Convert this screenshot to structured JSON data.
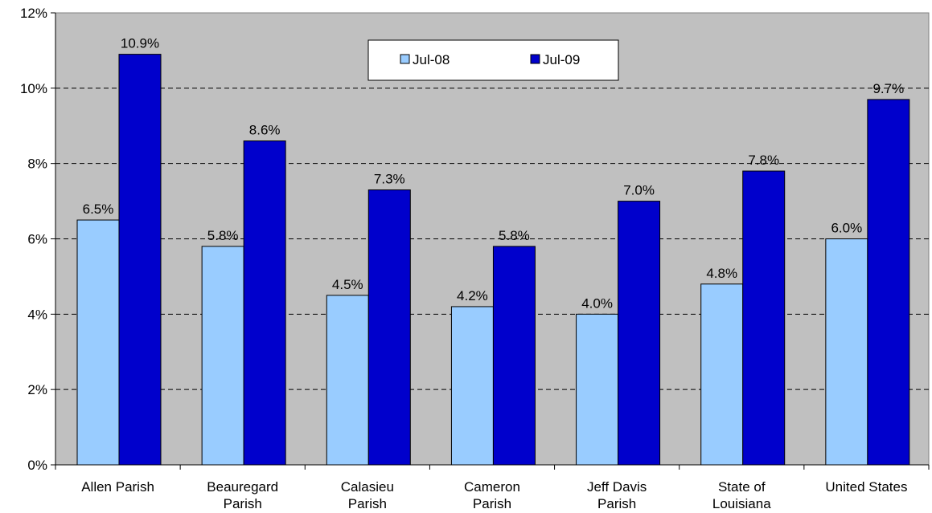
{
  "chart_data": {
    "type": "bar",
    "categories": [
      [
        "Allen Parish"
      ],
      [
        "Beauregard",
        "Parish"
      ],
      [
        "Calasieu",
        "Parish"
      ],
      [
        "Cameron",
        "Parish"
      ],
      [
        "Jeff Davis",
        "Parish"
      ],
      [
        "State of",
        "Louisiana"
      ],
      [
        "United States"
      ]
    ],
    "series": [
      {
        "name": "Jul-08",
        "color": "#99ccff",
        "values": [
          6.5,
          5.8,
          4.5,
          4.2,
          4.0,
          4.8,
          6.0
        ],
        "labels": [
          "6.5%",
          "5.8%",
          "4.5%",
          "4.2%",
          "4.0%",
          "4.8%",
          "6.0%"
        ]
      },
      {
        "name": "Jul-09",
        "color": "#0000cc",
        "values": [
          10.9,
          8.6,
          7.3,
          5.8,
          7.0,
          7.8,
          9.7
        ],
        "labels": [
          "10.9%",
          "8.6%",
          "7.3%",
          "5.8%",
          "7.0%",
          "7.8%",
          "9.7%"
        ]
      }
    ],
    "ylim": [
      0,
      12
    ],
    "yticks": [
      0,
      2,
      4,
      6,
      8,
      10,
      12
    ],
    "ytick_labels": [
      "0%",
      "2%",
      "4%",
      "6%",
      "8%",
      "10%",
      "12%"
    ],
    "grid": "dashed horizontal",
    "plot_background": "#c0c0c0",
    "legend_position": "top-center"
  }
}
